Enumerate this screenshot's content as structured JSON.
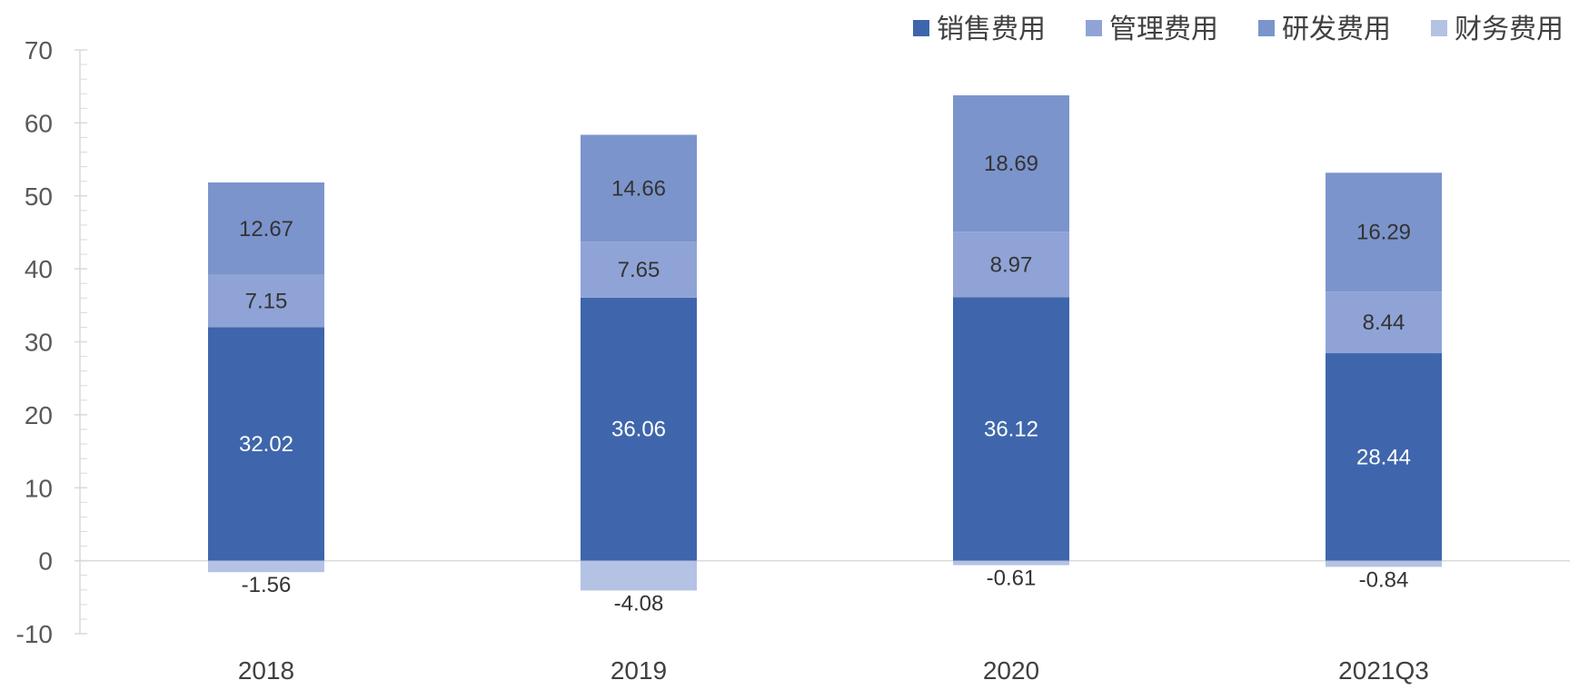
{
  "chart_data": {
    "type": "bar",
    "stacked": true,
    "categories": [
      "2018",
      "2019",
      "2020",
      "2021Q3"
    ],
    "series": [
      {
        "name": "销售费用",
        "color": "#3F66AC",
        "label_color": "#FFFFFF",
        "values": [
          32.02,
          36.06,
          36.12,
          28.44
        ]
      },
      {
        "name": "管理费用",
        "color": "#8FA3D6",
        "label_color": "#333333",
        "values": [
          7.15,
          7.65,
          8.97,
          8.44
        ]
      },
      {
        "name": "研发费用",
        "color": "#7B94CC",
        "label_color": "#333333",
        "values": [
          12.67,
          14.66,
          18.69,
          16.29
        ]
      },
      {
        "name": "财务费用",
        "color": "#B4C2E4",
        "label_color": "#333333",
        "values": [
          -1.56,
          -4.08,
          -0.61,
          -0.84
        ]
      }
    ],
    "ylim": [
      -10,
      70
    ],
    "y_ticks": [
      -10,
      0,
      10,
      20,
      30,
      40,
      50,
      60,
      70
    ],
    "legend_position": "top-right",
    "title": "",
    "xlabel": "",
    "ylabel": ""
  }
}
